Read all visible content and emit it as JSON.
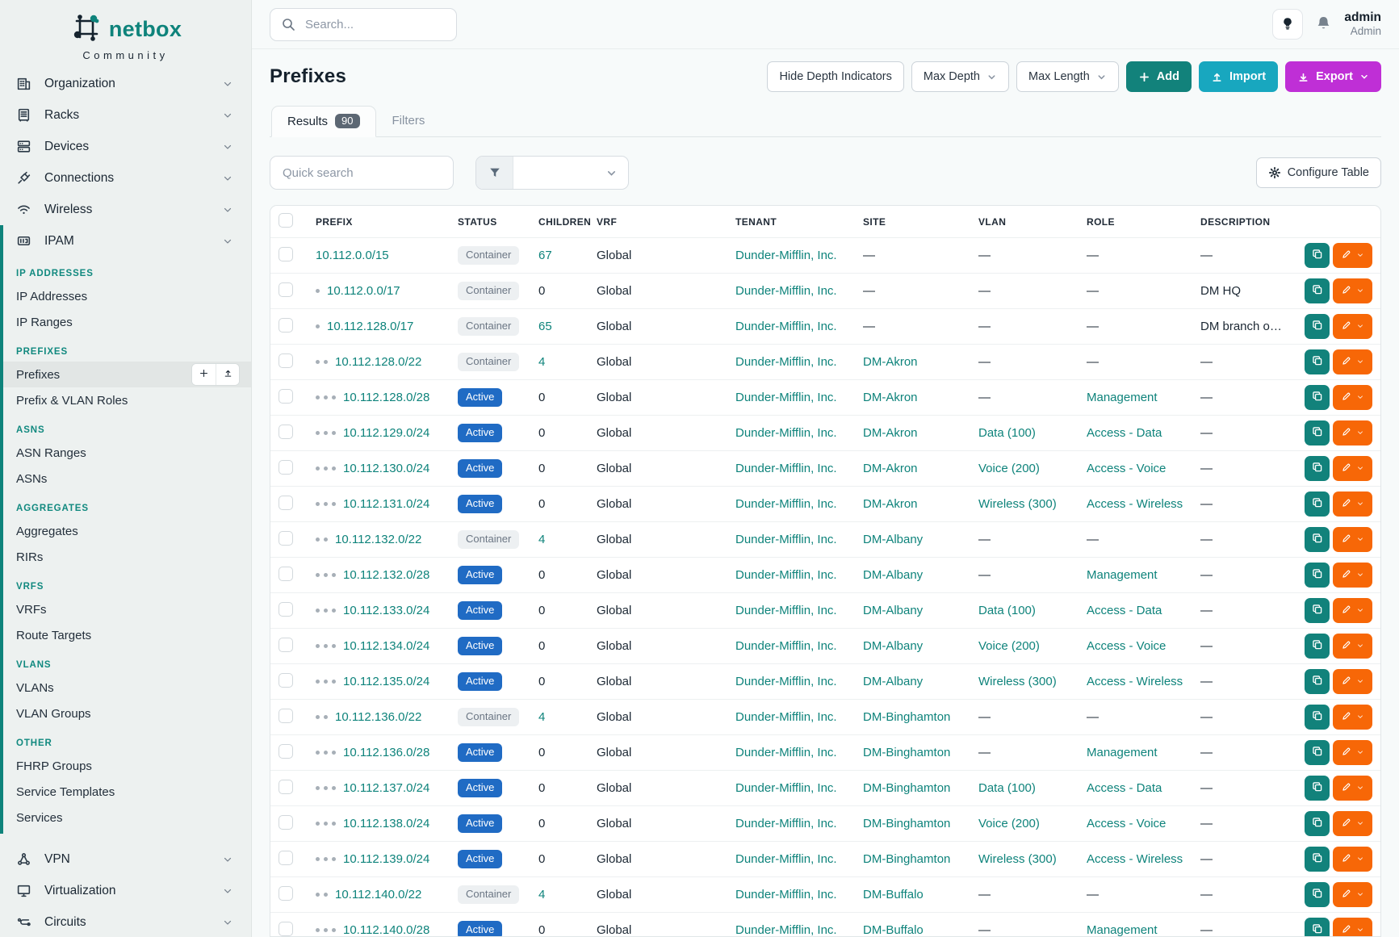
{
  "brand": {
    "name": "netbox",
    "subtitle": "Community",
    "teal": "#0e837b"
  },
  "topbar": {
    "search_placeholder": "Search...",
    "user": {
      "name": "admin",
      "role": "Admin"
    }
  },
  "sidebar": {
    "nav_top": [
      {
        "label": "Organization",
        "icon": "organization"
      },
      {
        "label": "Racks",
        "icon": "racks"
      },
      {
        "label": "Devices",
        "icon": "devices"
      },
      {
        "label": "Connections",
        "icon": "connections"
      },
      {
        "label": "Wireless",
        "icon": "wireless"
      }
    ],
    "ipam_item": {
      "label": "IPAM",
      "icon": "ipam"
    },
    "sections": [
      {
        "header": "IP ADDRESSES",
        "items": [
          {
            "label": "IP Addresses"
          },
          {
            "label": "IP Ranges"
          }
        ]
      },
      {
        "header": "PREFIXES",
        "items": [
          {
            "label": "Prefixes",
            "active": true,
            "quick_actions": true
          },
          {
            "label": "Prefix & VLAN Roles"
          }
        ]
      },
      {
        "header": "ASNS",
        "items": [
          {
            "label": "ASN Ranges"
          },
          {
            "label": "ASNs"
          }
        ]
      },
      {
        "header": "AGGREGATES",
        "items": [
          {
            "label": "Aggregates"
          },
          {
            "label": "RIRs"
          }
        ]
      },
      {
        "header": "VRFS",
        "items": [
          {
            "label": "VRFs"
          },
          {
            "label": "Route Targets"
          }
        ]
      },
      {
        "header": "VLANS",
        "items": [
          {
            "label": "VLANs"
          },
          {
            "label": "VLAN Groups"
          }
        ]
      },
      {
        "header": "OTHER",
        "items": [
          {
            "label": "FHRP Groups"
          },
          {
            "label": "Service Templates"
          },
          {
            "label": "Services"
          }
        ]
      }
    ],
    "nav_bottom": [
      {
        "label": "VPN",
        "icon": "vpn"
      },
      {
        "label": "Virtualization",
        "icon": "virtualization"
      },
      {
        "label": "Circuits",
        "icon": "circuits"
      }
    ]
  },
  "page": {
    "title": "Prefixes",
    "toolbar": {
      "hide_depth_label": "Hide Depth Indicators",
      "max_depth_label": "Max Depth",
      "max_length_label": "Max Length",
      "add_label": "Add",
      "import_label": "Import",
      "export_label": "Export"
    },
    "tabs": [
      {
        "label": "Results",
        "badge": "90",
        "active": true
      },
      {
        "label": "Filters",
        "active": false
      }
    ],
    "quick_search_placeholder": "Quick search",
    "configure_table_label": "Configure Table"
  },
  "colors": {
    "accent_teal": "#0e837b",
    "status_active_blue": "#206bc4",
    "add_button": "#12827b",
    "import_button": "#18a7bf",
    "export_button": "#bf2fd6",
    "edit_button_orange": "#f76707"
  },
  "table": {
    "columns": [
      "PREFIX",
      "STATUS",
      "CHILDREN",
      "VRF",
      "TENANT",
      "SITE",
      "VLAN",
      "ROLE",
      "DESCRIPTION"
    ],
    "empty_value": "—",
    "rows": [
      {
        "prefix": "10.112.0.0/15",
        "depth": 0,
        "status": "Container",
        "children": "67",
        "vrf": "Global",
        "tenant": "Dunder-Mifflin, Inc.",
        "site": "—",
        "vlan": "—",
        "role": "—",
        "description": "—"
      },
      {
        "prefix": "10.112.0.0/17",
        "depth": 1,
        "status": "Container",
        "children": "0",
        "vrf": "Global",
        "tenant": "Dunder-Mifflin, Inc.",
        "site": "—",
        "vlan": "—",
        "role": "—",
        "description": "DM HQ"
      },
      {
        "prefix": "10.112.128.0/17",
        "depth": 1,
        "status": "Container",
        "children": "65",
        "vrf": "Global",
        "tenant": "Dunder-Mifflin, Inc.",
        "site": "—",
        "vlan": "—",
        "role": "—",
        "description": "DM branch offices"
      },
      {
        "prefix": "10.112.128.0/22",
        "depth": 2,
        "status": "Container",
        "children": "4",
        "vrf": "Global",
        "tenant": "Dunder-Mifflin, Inc.",
        "site": "DM-Akron",
        "vlan": "—",
        "role": "—",
        "description": "—"
      },
      {
        "prefix": "10.112.128.0/28",
        "depth": 3,
        "status": "Active",
        "children": "0",
        "vrf": "Global",
        "tenant": "Dunder-Mifflin, Inc.",
        "site": "DM-Akron",
        "vlan": "—",
        "role": "Management",
        "description": "—"
      },
      {
        "prefix": "10.112.129.0/24",
        "depth": 3,
        "status": "Active",
        "children": "0",
        "vrf": "Global",
        "tenant": "Dunder-Mifflin, Inc.",
        "site": "DM-Akron",
        "vlan": "Data (100)",
        "role": "Access - Data",
        "description": "—"
      },
      {
        "prefix": "10.112.130.0/24",
        "depth": 3,
        "status": "Active",
        "children": "0",
        "vrf": "Global",
        "tenant": "Dunder-Mifflin, Inc.",
        "site": "DM-Akron",
        "vlan": "Voice (200)",
        "role": "Access - Voice",
        "description": "—"
      },
      {
        "prefix": "10.112.131.0/24",
        "depth": 3,
        "status": "Active",
        "children": "0",
        "vrf": "Global",
        "tenant": "Dunder-Mifflin, Inc.",
        "site": "DM-Akron",
        "vlan": "Wireless (300)",
        "role": "Access - Wireless",
        "description": "—"
      },
      {
        "prefix": "10.112.132.0/22",
        "depth": 2,
        "status": "Container",
        "children": "4",
        "vrf": "Global",
        "tenant": "Dunder-Mifflin, Inc.",
        "site": "DM-Albany",
        "vlan": "—",
        "role": "—",
        "description": "—"
      },
      {
        "prefix": "10.112.132.0/28",
        "depth": 3,
        "status": "Active",
        "children": "0",
        "vrf": "Global",
        "tenant": "Dunder-Mifflin, Inc.",
        "site": "DM-Albany",
        "vlan": "—",
        "role": "Management",
        "description": "—"
      },
      {
        "prefix": "10.112.133.0/24",
        "depth": 3,
        "status": "Active",
        "children": "0",
        "vrf": "Global",
        "tenant": "Dunder-Mifflin, Inc.",
        "site": "DM-Albany",
        "vlan": "Data (100)",
        "role": "Access - Data",
        "description": "—"
      },
      {
        "prefix": "10.112.134.0/24",
        "depth": 3,
        "status": "Active",
        "children": "0",
        "vrf": "Global",
        "tenant": "Dunder-Mifflin, Inc.",
        "site": "DM-Albany",
        "vlan": "Voice (200)",
        "role": "Access - Voice",
        "description": "—"
      },
      {
        "prefix": "10.112.135.0/24",
        "depth": 3,
        "status": "Active",
        "children": "0",
        "vrf": "Global",
        "tenant": "Dunder-Mifflin, Inc.",
        "site": "DM-Albany",
        "vlan": "Wireless (300)",
        "role": "Access - Wireless",
        "description": "—"
      },
      {
        "prefix": "10.112.136.0/22",
        "depth": 2,
        "status": "Container",
        "children": "4",
        "vrf": "Global",
        "tenant": "Dunder-Mifflin, Inc.",
        "site": "DM-Binghamton",
        "vlan": "—",
        "role": "—",
        "description": "—"
      },
      {
        "prefix": "10.112.136.0/28",
        "depth": 3,
        "status": "Active",
        "children": "0",
        "vrf": "Global",
        "tenant": "Dunder-Mifflin, Inc.",
        "site": "DM-Binghamton",
        "vlan": "—",
        "role": "Management",
        "description": "—"
      },
      {
        "prefix": "10.112.137.0/24",
        "depth": 3,
        "status": "Active",
        "children": "0",
        "vrf": "Global",
        "tenant": "Dunder-Mifflin, Inc.",
        "site": "DM-Binghamton",
        "vlan": "Data (100)",
        "role": "Access - Data",
        "description": "—"
      },
      {
        "prefix": "10.112.138.0/24",
        "depth": 3,
        "status": "Active",
        "children": "0",
        "vrf": "Global",
        "tenant": "Dunder-Mifflin, Inc.",
        "site": "DM-Binghamton",
        "vlan": "Voice (200)",
        "role": "Access - Voice",
        "description": "—"
      },
      {
        "prefix": "10.112.139.0/24",
        "depth": 3,
        "status": "Active",
        "children": "0",
        "vrf": "Global",
        "tenant": "Dunder-Mifflin, Inc.",
        "site": "DM-Binghamton",
        "vlan": "Wireless (300)",
        "role": "Access - Wireless",
        "description": "—"
      },
      {
        "prefix": "10.112.140.0/22",
        "depth": 2,
        "status": "Container",
        "children": "4",
        "vrf": "Global",
        "tenant": "Dunder-Mifflin, Inc.",
        "site": "DM-Buffalo",
        "vlan": "—",
        "role": "—",
        "description": "—"
      },
      {
        "prefix": "10.112.140.0/28",
        "depth": 3,
        "status": "Active",
        "children": "0",
        "vrf": "Global",
        "tenant": "Dunder-Mifflin, Inc.",
        "site": "DM-Buffalo",
        "vlan": "—",
        "role": "Management",
        "description": "—"
      }
    ]
  }
}
